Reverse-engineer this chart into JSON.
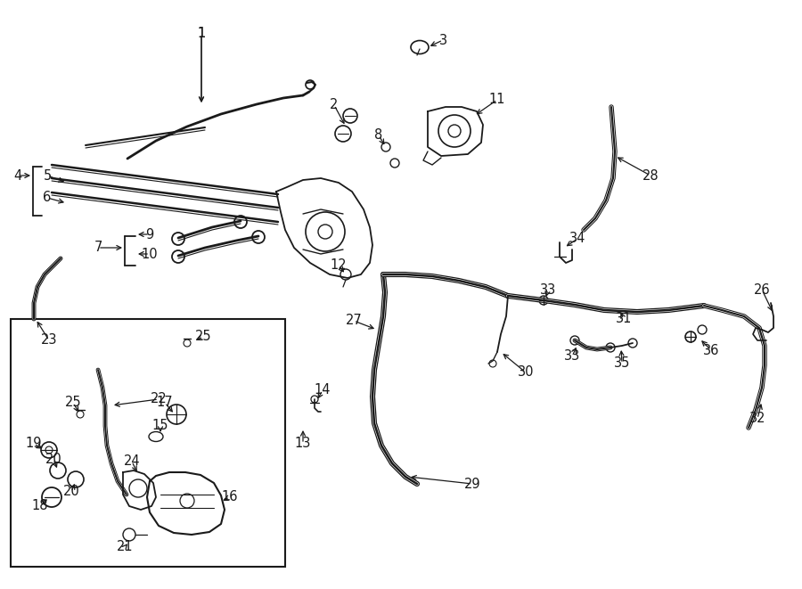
{
  "bg": "#ffffff",
  "lc": "#1a1a1a",
  "fig_w": 9.0,
  "fig_h": 6.61,
  "dpi": 100,
  "fs": 10.5
}
